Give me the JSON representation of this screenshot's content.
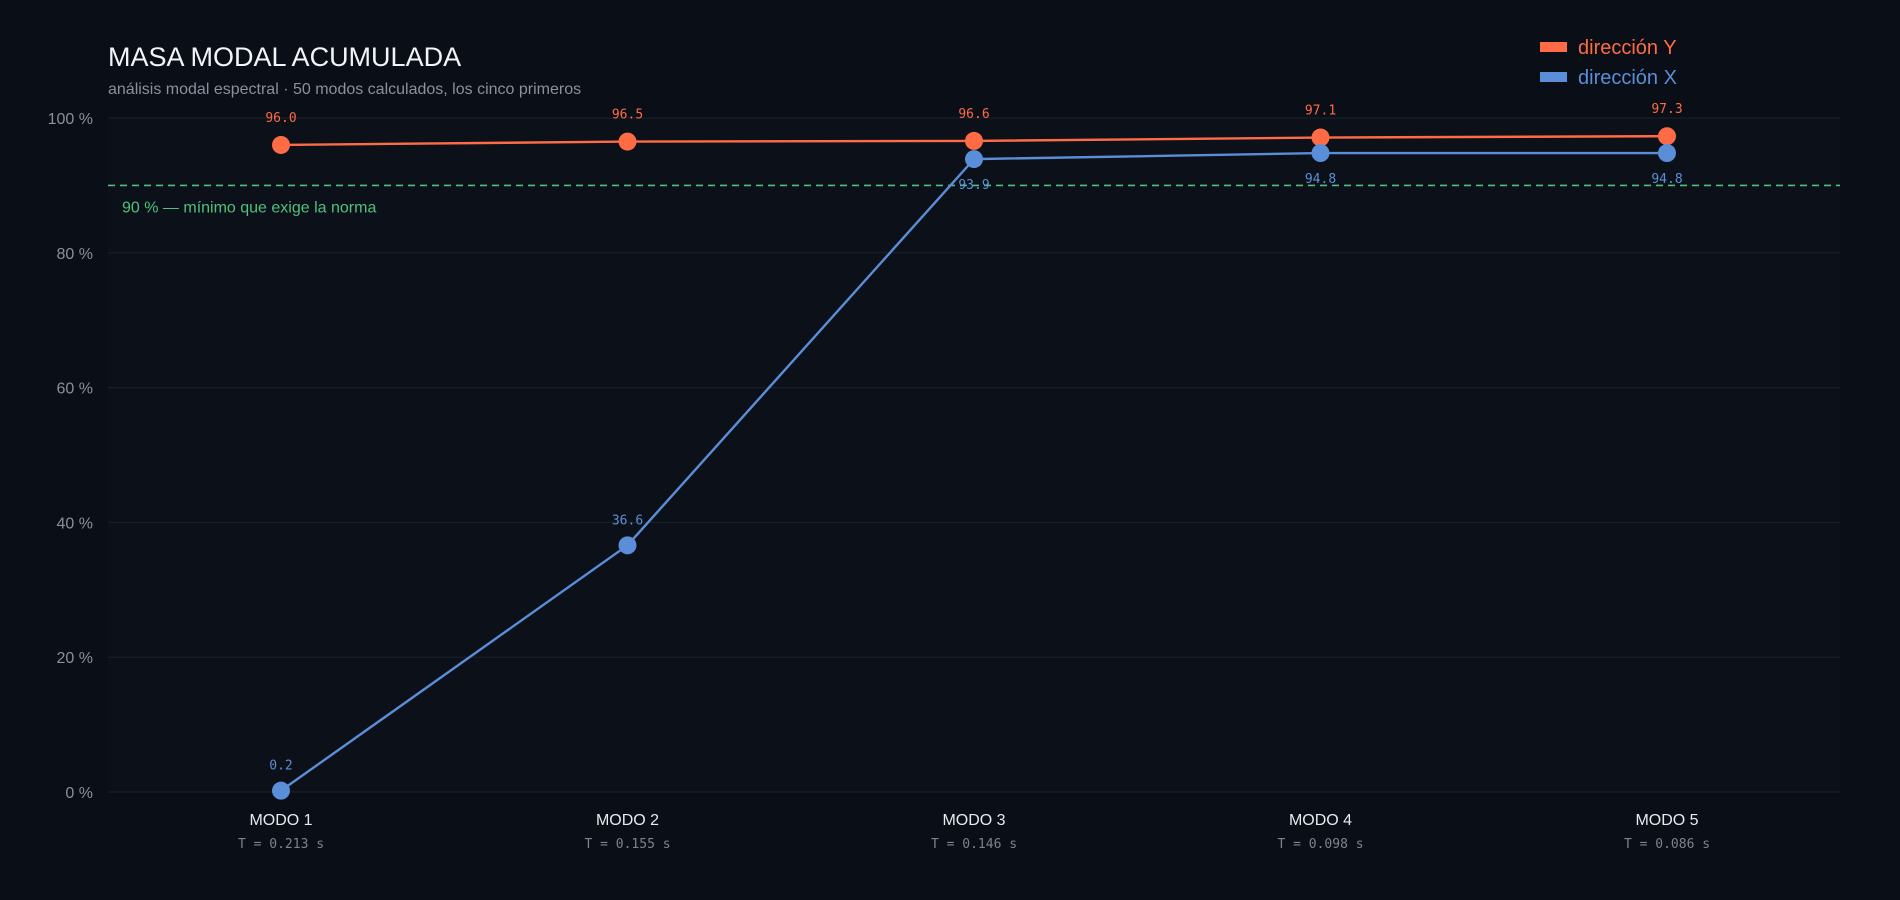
{
  "chart_data": {
    "type": "line",
    "title": "MASA MODAL ACUMULADA",
    "subtitle": "análisis modal espectral · 50 modos calculados, los cinco primeros",
    "categories": [
      "MODO 1",
      "MODO 2",
      "MODO 3",
      "MODO 4",
      "MODO 5"
    ],
    "periods": [
      "T = 0.213 s",
      "T = 0.155 s",
      "T = 0.146 s",
      "T = 0.098 s",
      "T = 0.086 s"
    ],
    "series": [
      {
        "name": "dirección Y",
        "color": "#ff6b45",
        "values": [
          96.0,
          96.5,
          96.6,
          97.1,
          97.3
        ],
        "labels": [
          "96.0",
          "96.5",
          "96.6",
          "97.1",
          "97.3"
        ]
      },
      {
        "name": "dirección X",
        "color": "#5b8ed8",
        "values": [
          0.2,
          36.6,
          93.9,
          94.8,
          94.8
        ],
        "labels": [
          "0.2",
          "36.6",
          "93.9",
          "94.8",
          "94.8"
        ]
      }
    ],
    "ylim": [
      0,
      100
    ],
    "yticks": [
      0,
      20,
      40,
      60,
      80,
      100
    ],
    "ytick_labels": [
      "0 %",
      "20 %",
      "40 %",
      "60 %",
      "80 %",
      "100 %"
    ],
    "reference_line": {
      "value": 90,
      "label": "90 % — mínimo que exige la norma",
      "color": "#4ec17e"
    },
    "legend_position": "top-right",
    "grid": true
  }
}
